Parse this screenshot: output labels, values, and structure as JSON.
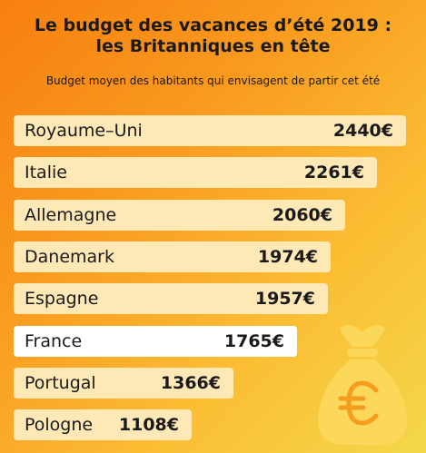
{
  "title_line1": "Le budget des vacances d’été 2019 :",
  "title_line2": "les Britanniques en tête",
  "subtitle": "Budget moyen des habitants qui envisagent de partir cet été",
  "colors": {
    "bar_default": "#fde8b6",
    "bar_highlight": "#ffffff",
    "bag": "#fbd85a",
    "euro": "#f59d1e"
  },
  "bag_icon": "money-bag-euro-icon",
  "chart_data": {
    "type": "bar",
    "orientation": "horizontal",
    "title": "Le budget des vacances d’été 2019 : les Britanniques en tête",
    "subtitle": "Budget moyen des habitants qui envisagent de partir cet été",
    "unit": "€",
    "categories": [
      "Royaume–Uni",
      "Italie",
      "Allemagne",
      "Danemark",
      "Espagne",
      "France",
      "Portugal",
      "Pologne"
    ],
    "values": [
      2440,
      2261,
      2060,
      1974,
      1957,
      1765,
      1366,
      1108
    ],
    "value_labels": [
      "2440€",
      "2261€",
      "2060€",
      "1974€",
      "1957€",
      "1765€",
      "1366€",
      "1108€"
    ],
    "highlight": "France",
    "grid": false,
    "legend": "none"
  }
}
